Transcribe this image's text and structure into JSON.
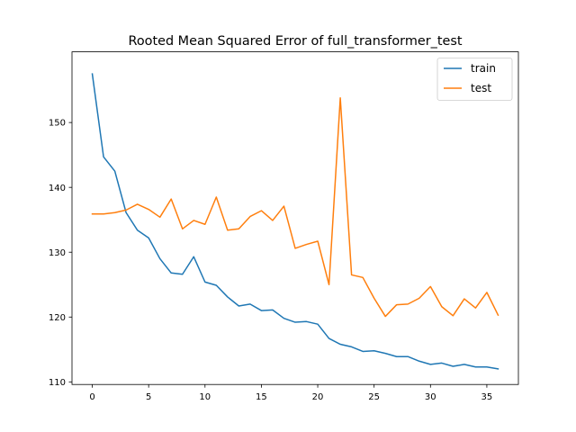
{
  "chart_data": {
    "type": "line",
    "title": "Rooted Mean Squared Error of full_transformer_test",
    "xlabel": "",
    "ylabel": "",
    "xlim": [
      -1.8,
      37.8
    ],
    "ylim": [
      109.6,
      160.9
    ],
    "xticks": [
      0,
      5,
      10,
      15,
      20,
      25,
      30,
      35
    ],
    "yticks": [
      110,
      120,
      130,
      140,
      150
    ],
    "grid": false,
    "legend": "top-right",
    "x": [
      0,
      1,
      2,
      3,
      4,
      5,
      6,
      7,
      8,
      9,
      10,
      11,
      12,
      13,
      14,
      15,
      16,
      17,
      18,
      19,
      20,
      21,
      22,
      23,
      24,
      25,
      26,
      27,
      28,
      29,
      30,
      31,
      32,
      33,
      34,
      35,
      36
    ],
    "series": [
      {
        "name": "train",
        "color": "#1f77b4",
        "values": [
          157.5,
          144.7,
          142.5,
          136.1,
          133.4,
          132.2,
          129.0,
          126.8,
          126.6,
          129.3,
          125.4,
          124.9,
          123.1,
          121.7,
          122.0,
          121.0,
          121.1,
          119.8,
          119.2,
          119.3,
          118.9,
          116.7,
          115.8,
          115.4,
          114.7,
          114.8,
          114.4,
          113.9,
          113.9,
          113.2,
          112.7,
          112.9,
          112.4,
          112.7,
          112.3,
          112.3,
          112.0
        ]
      },
      {
        "name": "test",
        "color": "#ff7f0e",
        "values": [
          135.9,
          135.9,
          136.1,
          136.5,
          137.4,
          136.6,
          135.4,
          138.2,
          133.6,
          134.9,
          134.3,
          138.5,
          133.4,
          133.6,
          135.5,
          136.4,
          134.9,
          137.1,
          130.6,
          131.2,
          131.7,
          125.0,
          153.8,
          126.5,
          126.1,
          122.9,
          120.1,
          121.9,
          122.0,
          122.9,
          124.7,
          121.6,
          120.2,
          122.8,
          121.4,
          123.8,
          120.3
        ]
      }
    ]
  }
}
